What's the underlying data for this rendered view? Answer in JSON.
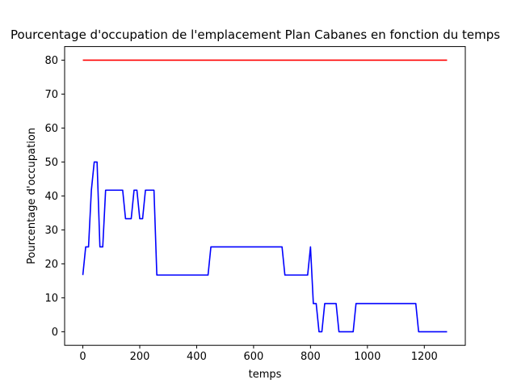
{
  "chart_data": {
    "type": "line",
    "title": "Pourcentage d'occupation de l'emplacement Plan Cabanes en fonction du temps",
    "xlabel": "temps",
    "ylabel": "Pourcentage d'occupation",
    "xlim": [
      -64,
      1344
    ],
    "ylim": [
      -4,
      84
    ],
    "xticks": [
      0,
      200,
      400,
      600,
      800,
      1000,
      1200
    ],
    "yticks": [
      0,
      10,
      20,
      30,
      40,
      50,
      60,
      70,
      80
    ],
    "grid": false,
    "legend": "none",
    "series": [
      {
        "color": "#ff0000",
        "x": [
          0,
          1280
        ],
        "y": [
          80,
          80
        ]
      },
      {
        "color": "#0000ff",
        "x": [
          0,
          10,
          20,
          30,
          40,
          50,
          60,
          70,
          80,
          90,
          140,
          150,
          170,
          180,
          190,
          200,
          210,
          220,
          230,
          250,
          260,
          270,
          440,
          450,
          460,
          700,
          710,
          720,
          790,
          800,
          810,
          820,
          830,
          840,
          850,
          860,
          890,
          900,
          910,
          950,
          960,
          970,
          1160,
          1170,
          1180,
          1280
        ],
        "y": [
          16.7,
          25,
          25,
          41.7,
          50,
          50,
          25,
          25,
          41.7,
          41.7,
          41.7,
          33.3,
          33.3,
          41.7,
          41.7,
          33.3,
          33.3,
          41.7,
          41.7,
          41.7,
          16.7,
          16.7,
          16.7,
          25,
          25,
          25,
          16.7,
          16.7,
          16.7,
          25,
          8.3,
          8.3,
          0,
          0,
          8.3,
          8.3,
          8.3,
          0,
          0,
          0,
          8.3,
          8.3,
          8.3,
          8.3,
          0,
          0
        ]
      }
    ]
  }
}
